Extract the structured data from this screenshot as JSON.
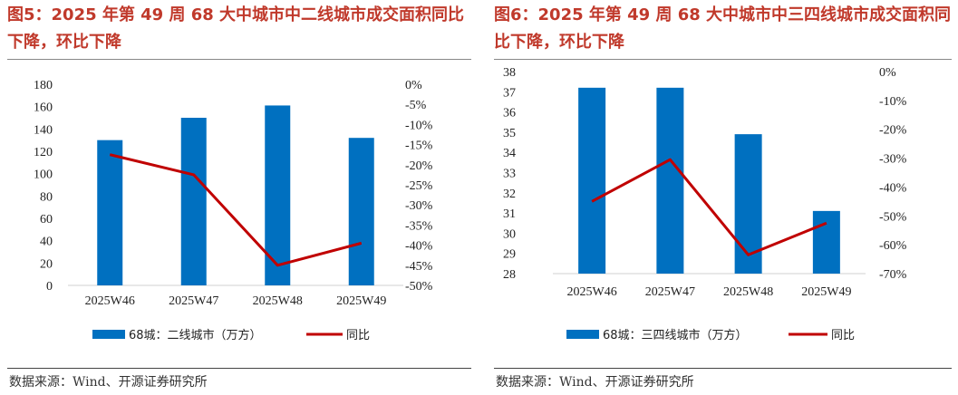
{
  "panels": [
    {
      "title": "图5：2025 年第 49 周 68 大中城市中二线城市成交面积同比下降，环比下降",
      "source": "数据来源：Wind、开源证券研究所",
      "colors": {
        "bar": "#0070c0",
        "line": "#c00000"
      },
      "chart_data": {
        "type": "bar+line",
        "categories": [
          "2025W46",
          "2025W47",
          "2025W48",
          "2025W49"
        ],
        "series": [
          {
            "name": "68城：二线城市（万方）",
            "type": "bar",
            "axis": "left",
            "values": [
              130,
              150,
              161,
              132
            ]
          },
          {
            "name": "同比",
            "type": "line",
            "axis": "right",
            "values": [
              -17.5,
              -22.5,
              -45,
              -39.5
            ]
          }
        ],
        "left_axis": {
          "min": 0,
          "max": 180,
          "step": 20,
          "ticks": [
            "0",
            "20",
            "40",
            "60",
            "80",
            "100",
            "120",
            "140",
            "160",
            "180"
          ]
        },
        "right_axis": {
          "min": -50,
          "max": 0,
          "step": 5,
          "ticks": [
            "0%",
            "-5%",
            "-10%",
            "-15%",
            "-20%",
            "-25%",
            "-30%",
            "-35%",
            "-40%",
            "-45%",
            "-50%"
          ]
        },
        "legend_position": "bottom"
      }
    },
    {
      "title": "图6：2025 年第 49 周 68 大中城市中三四线城市成交面积同比下降，环比下降",
      "source": "数据来源：Wind、开源证券研究所",
      "colors": {
        "bar": "#0070c0",
        "line": "#c00000"
      },
      "chart_data": {
        "type": "bar+line",
        "categories": [
          "2025W46",
          "2025W47",
          "2025W48",
          "2025W49"
        ],
        "series": [
          {
            "name": "68城：三四线城市（万方）",
            "type": "bar",
            "axis": "left",
            "values": [
              37.2,
              37.2,
              34.9,
              31.1
            ]
          },
          {
            "name": "同比",
            "type": "line",
            "axis": "right",
            "values": [
              -45,
              -30.5,
              -63.5,
              -52.5
            ]
          }
        ],
        "left_axis": {
          "min": 28,
          "max": 38,
          "step": 1,
          "ticks": [
            "28",
            "29",
            "30",
            "31",
            "32",
            "33",
            "34",
            "35",
            "36",
            "37",
            "38"
          ]
        },
        "right_axis": {
          "min": -70,
          "max": 0,
          "step": 10,
          "ticks": [
            "0%",
            "-10%",
            "-20%",
            "-30%",
            "-40%",
            "-50%",
            "-60%",
            "-70%"
          ]
        },
        "legend_position": "bottom"
      }
    }
  ]
}
